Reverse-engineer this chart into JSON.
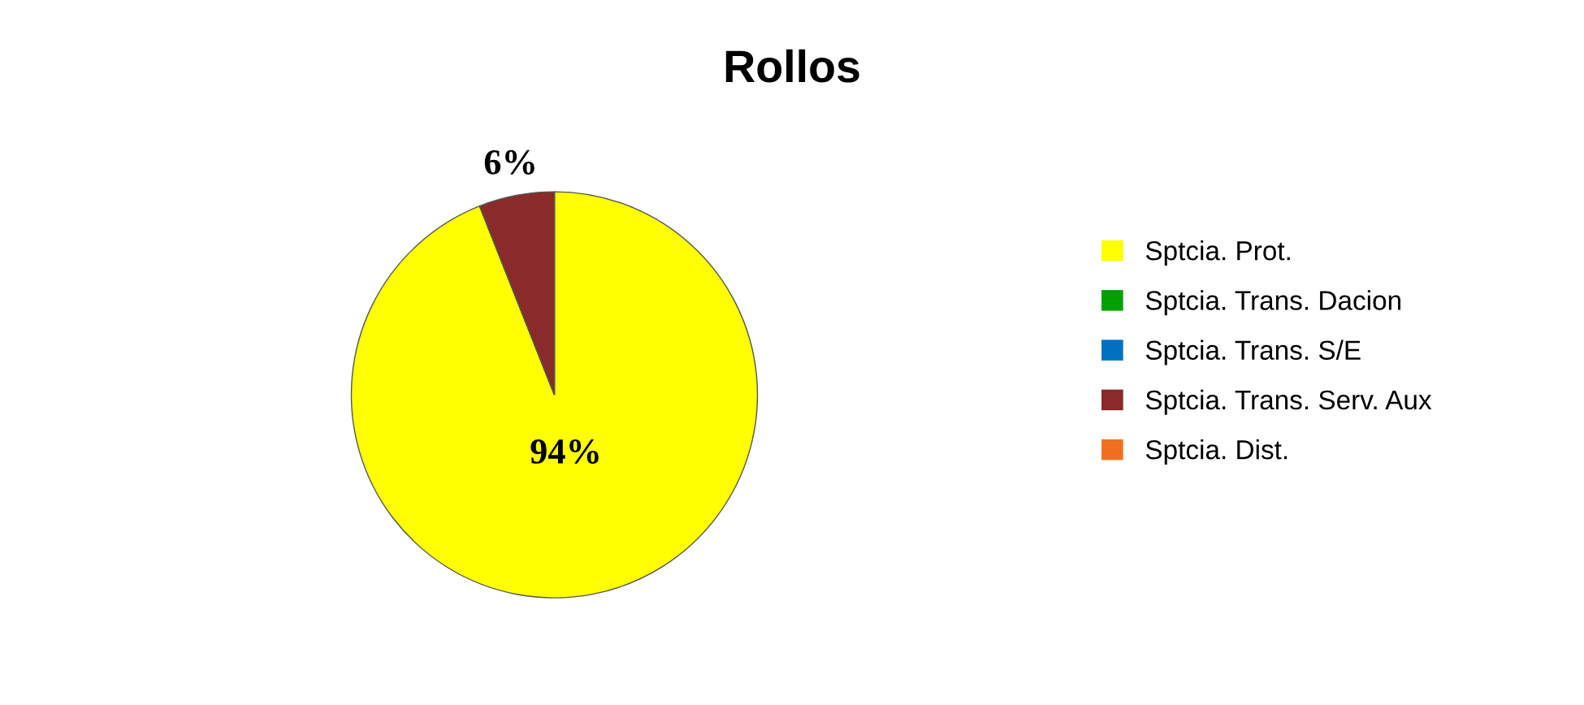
{
  "chart_data": {
    "type": "pie",
    "title": "Rollos",
    "categories": [
      "Sptcia. Prot.",
      "Sptcia. Trans. Dacion",
      "Sptcia. Trans. S/E",
      "Sptcia. Trans. Serv. Aux",
      "Sptcia. Dist."
    ],
    "values": [
      94,
      0,
      0,
      6,
      0
    ],
    "colors": [
      "#ffff00",
      "#00a000",
      "#0070c0",
      "#8b2a2a",
      "#f07020"
    ],
    "value_labels": [
      "94%",
      null,
      null,
      "6%",
      null
    ],
    "legend": "right"
  }
}
